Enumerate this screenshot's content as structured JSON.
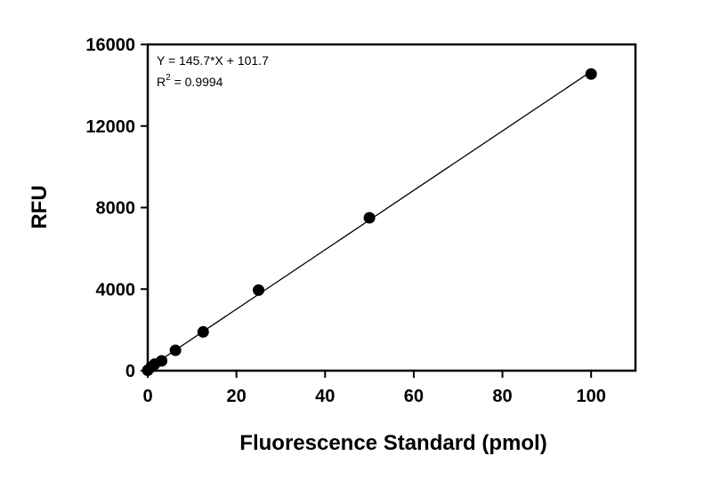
{
  "chart_data": {
    "type": "scatter",
    "title": "",
    "xlabel": "Fluorescence Standard (pmol)",
    "ylabel": "RFU",
    "xlim": [
      0,
      110
    ],
    "ylim": [
      0,
      16000
    ],
    "x_ticks": [
      0,
      20,
      40,
      60,
      80,
      100
    ],
    "y_ticks": [
      0,
      4000,
      8000,
      12000,
      16000
    ],
    "grid": false,
    "series": [
      {
        "x": [
          0,
          0.78,
          1.56,
          3.125,
          6.25,
          12.5,
          25,
          50,
          100
        ],
        "y": [
          20,
          180,
          320,
          480,
          1000,
          1900,
          3950,
          7500,
          14550
        ]
      }
    ],
    "fit": {
      "slope": 145.7,
      "intercept": 101.7,
      "x_range": [
        0,
        100
      ]
    },
    "annotations": {
      "equation": "Y = 145.7*X + 101.7",
      "r2_prefix": "R",
      "r2_sup": "2",
      "r2_value": " = 0.9994"
    },
    "colors": {
      "points": "#000000",
      "line": "#000000",
      "axes": "#000000"
    }
  }
}
